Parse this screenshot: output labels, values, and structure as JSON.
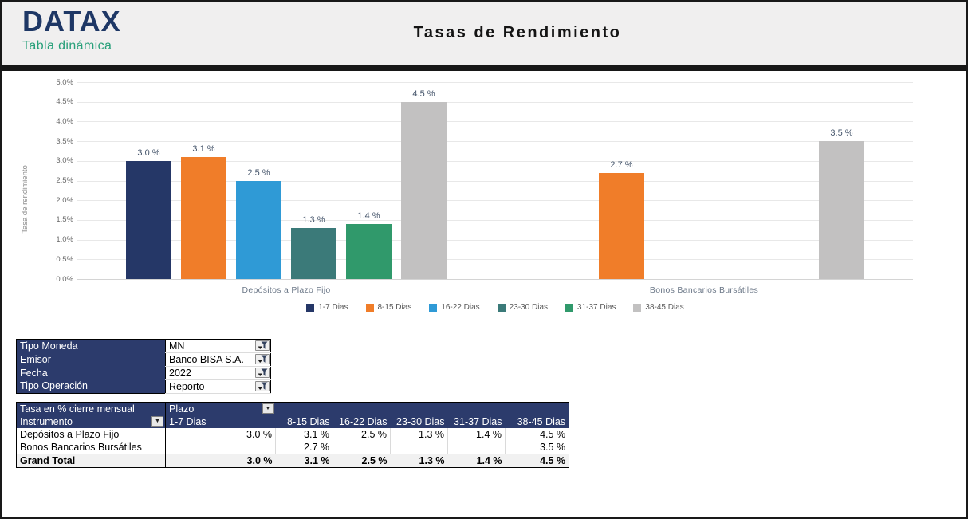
{
  "header": {
    "logo_text": "DATAX",
    "logo_subtitle": "Tabla dinámica",
    "title": "Tasas de Rendimiento"
  },
  "icons": {
    "dropdown": "▼"
  },
  "colors": {
    "table_header_navy": "#2C3B6C",
    "header_band_gray": "#F0EFEF",
    "logo_navy": "#1E3765",
    "logo_teal": "#28A07A",
    "logo_accent_blue": "#41A8DB"
  },
  "chart_data": {
    "type": "bar",
    "title": "Tasas de Rendimiento",
    "xlabel": "",
    "ylabel": "Tasa de rendimiento",
    "ylim": [
      0,
      5
    ],
    "ytick_step": 0.5,
    "ytick_suffix": "%",
    "grid": true,
    "legend_position": "bottom",
    "data_label_suffix": " %",
    "categories": [
      "Depósitos a Plazo Fijo",
      "Bonos Bancarios Bursátiles"
    ],
    "series": [
      {
        "name": "1-7 Dias",
        "color": "#253767",
        "values": [
          3.0,
          null
        ]
      },
      {
        "name": "8-15 Dias",
        "color": "#F07D29",
        "values": [
          3.1,
          2.7
        ]
      },
      {
        "name": "16-22 Dias",
        "color": "#2F9AD6",
        "values": [
          2.5,
          null
        ]
      },
      {
        "name": "23-30 Dias",
        "color": "#3B7A79",
        "values": [
          1.3,
          null
        ]
      },
      {
        "name": "31-37 Dias",
        "color": "#30996B",
        "values": [
          1.4,
          null
        ]
      },
      {
        "name": "38-45 Dias",
        "color": "#C2C1C1",
        "values": [
          4.5,
          3.5
        ]
      }
    ]
  },
  "filters": {
    "rows": [
      {
        "label": "Tipo Moneda",
        "value": "MN"
      },
      {
        "label": "Emisor",
        "value": "Banco BISA S.A."
      },
      {
        "label": "Fecha",
        "value": "2022"
      },
      {
        "label": "Tipo Operación",
        "value": "Reporto"
      }
    ]
  },
  "pivot": {
    "measure_label": "Tasa en % cierre mensual",
    "column_field": "Plazo",
    "row_field": "Instrumento",
    "col_headers": [
      "1-7 Dias",
      "8-15 Dias",
      "16-22 Dias",
      "23-30 Dias",
      "31-37 Dias",
      "38-45 Dias"
    ],
    "rows": [
      {
        "label": "Depósitos a Plazo Fijo",
        "values": [
          "3.0 %",
          "3.1 %",
          "2.5 %",
          "1.3 %",
          "1.4 %",
          "4.5 %"
        ]
      },
      {
        "label": "Bonos Bancarios Bursátiles",
        "values": [
          "",
          "2.7 %",
          "",
          "",
          "",
          "3.5 %"
        ]
      }
    ],
    "grand_total": {
      "label": "Grand Total",
      "values": [
        "3.0 %",
        "3.1 %",
        "2.5 %",
        "1.3 %",
        "1.4 %",
        "4.5 %"
      ]
    }
  }
}
